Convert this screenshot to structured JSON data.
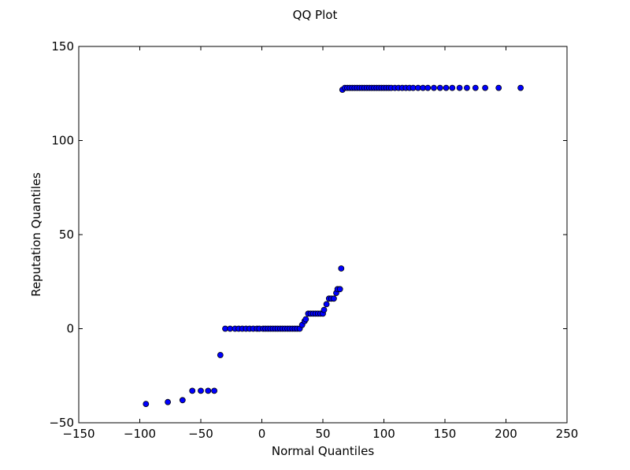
{
  "chart_data": {
    "type": "scatter",
    "title": "QQ Plot",
    "xlabel": "Normal Quantiles",
    "ylabel": "Reputation Quantiles",
    "xlim": [
      -150,
      250
    ],
    "ylim": [
      -50,
      150
    ],
    "xticks": [
      -150,
      -100,
      -50,
      0,
      50,
      100,
      150,
      200,
      250
    ],
    "yticks": [
      -50,
      0,
      50,
      100,
      150
    ],
    "xtick_labels": [
      "−150",
      "−100",
      "−50",
      "0",
      "50",
      "100",
      "150",
      "200",
      "250"
    ],
    "ytick_labels": [
      "−50",
      "0",
      "50",
      "100",
      "150"
    ],
    "grid": false,
    "marker_color": "#0000ff",
    "marker_edge_color": "#000000",
    "points": [
      [
        -95,
        -40
      ],
      [
        -77,
        -39
      ],
      [
        -65,
        -38
      ],
      [
        -57,
        -33
      ],
      [
        -50,
        -33
      ],
      [
        -44,
        -33
      ],
      [
        -39,
        -33
      ],
      [
        -34,
        -14
      ],
      [
        -30,
        0
      ],
      [
        -26,
        0
      ],
      [
        -22,
        0
      ],
      [
        -19,
        0
      ],
      [
        -16,
        0
      ],
      [
        -13,
        0
      ],
      [
        -10,
        0
      ],
      [
        -7,
        0
      ],
      [
        -4,
        0
      ],
      [
        -2,
        0
      ],
      [
        1,
        0
      ],
      [
        3,
        0
      ],
      [
        5,
        0
      ],
      [
        7,
        0
      ],
      [
        9,
        0
      ],
      [
        11,
        0
      ],
      [
        13,
        0
      ],
      [
        15,
        0
      ],
      [
        17,
        0
      ],
      [
        19,
        0
      ],
      [
        21,
        0
      ],
      [
        23,
        0
      ],
      [
        25,
        0
      ],
      [
        27,
        0
      ],
      [
        29,
        0
      ],
      [
        31,
        0
      ],
      [
        33,
        2
      ],
      [
        35,
        4
      ],
      [
        36,
        5
      ],
      [
        38,
        8
      ],
      [
        40,
        8
      ],
      [
        42,
        8
      ],
      [
        44,
        8
      ],
      [
        46,
        8
      ],
      [
        48,
        8
      ],
      [
        50,
        8
      ],
      [
        51,
        10
      ],
      [
        53,
        13
      ],
      [
        55,
        16
      ],
      [
        57,
        16
      ],
      [
        59,
        16
      ],
      [
        61,
        19
      ],
      [
        62,
        21
      ],
      [
        64,
        21
      ],
      [
        65,
        32
      ],
      [
        66,
        127
      ],
      [
        68,
        128
      ],
      [
        70,
        128
      ],
      [
        72,
        128
      ],
      [
        74,
        128
      ],
      [
        76,
        128
      ],
      [
        78,
        128
      ],
      [
        80,
        128
      ],
      [
        82,
        128
      ],
      [
        84,
        128
      ],
      [
        86,
        128
      ],
      [
        88,
        128
      ],
      [
        90,
        128
      ],
      [
        92,
        128
      ],
      [
        94,
        128
      ],
      [
        96,
        128
      ],
      [
        98,
        128
      ],
      [
        100,
        128
      ],
      [
        102,
        128
      ],
      [
        104,
        128
      ],
      [
        106,
        128
      ],
      [
        109,
        128
      ],
      [
        112,
        128
      ],
      [
        115,
        128
      ],
      [
        118,
        128
      ],
      [
        121,
        128
      ],
      [
        124,
        128
      ],
      [
        128,
        128
      ],
      [
        132,
        128
      ],
      [
        136,
        128
      ],
      [
        141,
        128
      ],
      [
        146,
        128
      ],
      [
        151,
        128
      ],
      [
        156,
        128
      ],
      [
        162,
        128
      ],
      [
        168,
        128
      ],
      [
        175,
        128
      ],
      [
        183,
        128
      ],
      [
        194,
        128
      ],
      [
        212,
        128
      ]
    ]
  }
}
